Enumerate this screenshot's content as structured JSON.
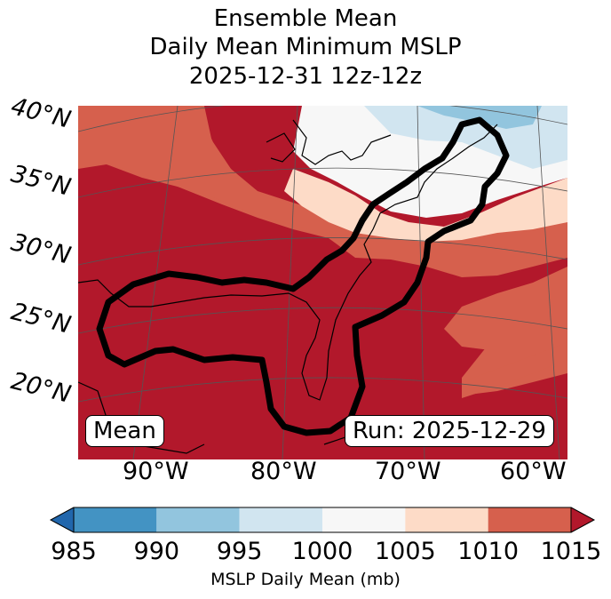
{
  "title_lines": [
    "Ensemble Mean",
    "Daily Mean Minimum MSLP",
    "2025-12-31 12z-12z"
  ],
  "map": {
    "lat_labels": [
      "40°N",
      "35°N",
      "30°N",
      "25°N",
      "20°N"
    ],
    "lon_labels": [
      "90°W",
      "80°W",
      "70°W",
      "60°W"
    ],
    "left_box": "Mean",
    "right_box": "Run: 2025-12-29"
  },
  "colorbar": {
    "ticks": [
      "985",
      "990",
      "995",
      "1000",
      "1005",
      "1010",
      "1015"
    ],
    "label": "MSLP Daily Mean (mb)",
    "colors": [
      "#2166ac",
      "#4393c3",
      "#92c5de",
      "#d1e5f0",
      "#f7f7f7",
      "#fddbc7",
      "#d6604d",
      "#b2182b"
    ]
  }
}
